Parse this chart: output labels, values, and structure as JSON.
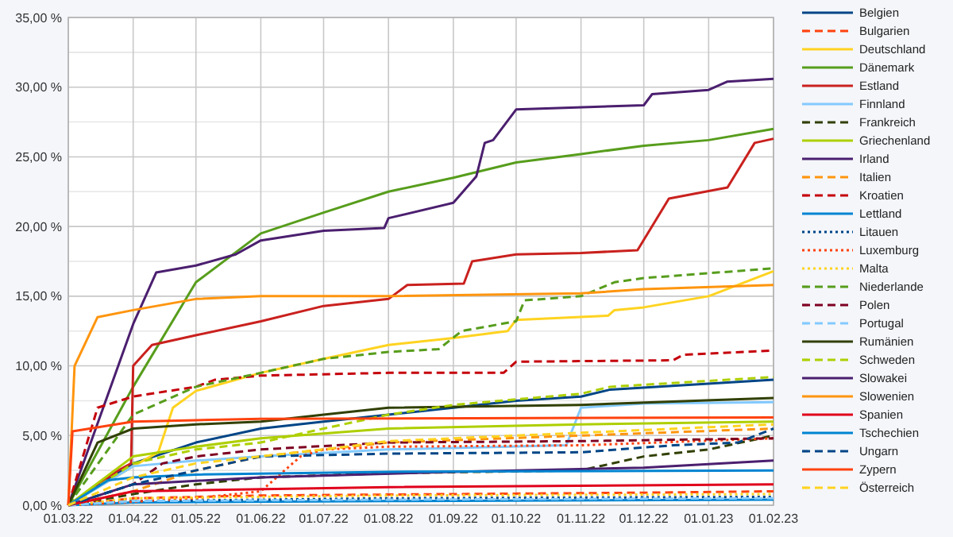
{
  "chart_data": {
    "type": "line",
    "legend": "right",
    "grid": true,
    "xlim": [
      "2022-03-01",
      "2023-02-01"
    ],
    "xticks": [
      {
        "value": "2022-03-01",
        "label": "01.03.22"
      },
      {
        "value": "2022-04-01",
        "label": "01.04.22"
      },
      {
        "value": "2022-05-01",
        "label": "01.05.22"
      },
      {
        "value": "2022-06-01",
        "label": "01.06.22"
      },
      {
        "value": "2022-07-01",
        "label": "01.07.22"
      },
      {
        "value": "2022-08-01",
        "label": "01.08.22"
      },
      {
        "value": "2022-09-01",
        "label": "01.09.22"
      },
      {
        "value": "2022-10-01",
        "label": "01.10.22"
      },
      {
        "value": "2022-11-01",
        "label": "01.11.22"
      },
      {
        "value": "2022-12-01",
        "label": "01.12.22"
      },
      {
        "value": "2023-01-01",
        "label": "01.01.23"
      },
      {
        "value": "2023-02-01",
        "label": "01.02.23"
      }
    ],
    "ylim": [
      0,
      35
    ],
    "yticks": [
      {
        "value": 0,
        "label": "0,00 %"
      },
      {
        "value": 2.5,
        "label": null
      },
      {
        "value": 5,
        "label": "5,00 %"
      },
      {
        "value": 7.5,
        "label": null
      },
      {
        "value": 10,
        "label": "10,00 %"
      },
      {
        "value": 12.5,
        "label": null
      },
      {
        "value": 15,
        "label": "15,00 %"
      },
      {
        "value": 17.5,
        "label": null
      },
      {
        "value": 20,
        "label": "20,00 %"
      },
      {
        "value": 22.5,
        "label": null
      },
      {
        "value": 25,
        "label": "25,00 %"
      },
      {
        "value": 27.5,
        "label": null
      },
      {
        "value": 30,
        "label": "30,00 %"
      },
      {
        "value": 32.5,
        "label": null
      },
      {
        "value": 35,
        "label": "35,00 %"
      }
    ],
    "series": [
      {
        "name": "Belgien",
        "color": "#004586",
        "line_style": "solid",
        "x": [
          "2022-03-01",
          "2022-04-01",
          "2022-05-01",
          "2022-06-01",
          "2022-07-01",
          "2022-08-01",
          "2022-09-01",
          "2022-10-01",
          "2022-11-01",
          "2022-11-15",
          "2023-02-01"
        ],
        "values": [
          0,
          3,
          4.5,
          5.5,
          6,
          6.5,
          7,
          7.5,
          7.8,
          8.3,
          9
        ]
      },
      {
        "name": "Bulgarien",
        "color": "#ff420e",
        "line_style": "dashed",
        "x": [
          "2022-03-01",
          "2022-04-01",
          "2022-06-01",
          "2022-09-01",
          "2022-12-01",
          "2023-02-01"
        ],
        "values": [
          0,
          0.5,
          0.7,
          0.8,
          0.9,
          1
        ]
      },
      {
        "name": "Deutschland",
        "color": "#ffd320",
        "line_style": "solid",
        "x": [
          "2022-03-01",
          "2022-04-01",
          "2022-04-13",
          "2022-04-20",
          "2022-05-01",
          "2022-06-01",
          "2022-07-01",
          "2022-08-01",
          "2022-09-01",
          "2022-09-27",
          "2022-10-01",
          "2022-11-14",
          "2022-11-17",
          "2022-12-01",
          "2023-01-01",
          "2023-02-01"
        ],
        "values": [
          0,
          2.8,
          3.8,
          7,
          8.2,
          9.5,
          10.5,
          11.5,
          12,
          12.5,
          13.3,
          13.6,
          14,
          14.2,
          15,
          16.8
        ]
      },
      {
        "name": "Dänemark",
        "color": "#579d1c",
        "line_style": "solid",
        "x": [
          "2022-03-01",
          "2022-04-01",
          "2022-05-01",
          "2022-06-01",
          "2022-07-01",
          "2022-08-01",
          "2022-09-01",
          "2022-10-01",
          "2022-11-01",
          "2022-12-01",
          "2023-01-01",
          "2023-02-01"
        ],
        "values": [
          0,
          8.5,
          16,
          19.5,
          21,
          22.5,
          23.5,
          24.6,
          25.2,
          25.8,
          26.2,
          27
        ]
      },
      {
        "name": "Estland",
        "color": "#c9211e",
        "line_style": "solid",
        "x": [
          "2022-03-01",
          "2022-03-25",
          "2022-03-31",
          "2022-04-01",
          "2022-04-10",
          "2022-05-01",
          "2022-06-01",
          "2022-07-01",
          "2022-08-01",
          "2022-08-10",
          "2022-09-06",
          "2022-09-10",
          "2022-10-01",
          "2022-11-01",
          "2022-11-28",
          "2022-12-13",
          "2023-01-10",
          "2023-01-23",
          "2023-02-01"
        ],
        "values": [
          0,
          2.5,
          3,
          10,
          11.5,
          12.2,
          13.2,
          14.3,
          14.8,
          15.8,
          15.9,
          17.5,
          18,
          18.1,
          18.3,
          22,
          22.8,
          26,
          26.3
        ]
      },
      {
        "name": "Finnland",
        "color": "#83caff",
        "line_style": "solid",
        "x": [
          "2022-03-01",
          "2022-04-01",
          "2022-05-01",
          "2022-06-01",
          "2022-08-01",
          "2022-10-25",
          "2022-11-01",
          "2022-12-01",
          "2023-02-01"
        ],
        "values": [
          0,
          2.8,
          3.2,
          3.5,
          4,
          4.3,
          7,
          7.3,
          7.4
        ]
      },
      {
        "name": "Frankreich",
        "color": "#314004",
        "line_style": "dashed",
        "x": [
          "2022-03-01",
          "2022-04-01",
          "2022-05-01",
          "2022-06-01",
          "2022-08-01",
          "2022-11-01",
          "2022-12-01",
          "2023-01-01",
          "2023-02-01"
        ],
        "values": [
          0,
          0.8,
          1.5,
          2,
          2.3,
          2.5,
          3.5,
          4,
          5
        ]
      },
      {
        "name": "Griechenland",
        "color": "#aecf00",
        "line_style": "solid",
        "x": [
          "2022-03-01",
          "2022-04-01",
          "2022-05-01",
          "2022-06-01",
          "2022-08-01",
          "2022-11-01",
          "2023-02-01"
        ],
        "values": [
          0,
          3.5,
          4.2,
          4.8,
          5.5,
          5.8,
          6
        ]
      },
      {
        "name": "Irland",
        "color": "#4b1f6f",
        "line_style": "solid",
        "x": [
          "2022-03-01",
          "2022-04-01",
          "2022-04-12",
          "2022-05-01",
          "2022-05-20",
          "2022-06-01",
          "2022-07-01",
          "2022-07-30",
          "2022-08-01",
          "2022-09-01",
          "2022-09-12",
          "2022-09-16",
          "2022-09-20",
          "2022-10-01",
          "2022-12-01",
          "2022-12-05",
          "2023-01-01",
          "2023-01-10",
          "2023-02-01"
        ],
        "values": [
          0,
          13,
          16.7,
          17.2,
          18,
          19,
          19.7,
          19.9,
          20.6,
          21.7,
          23.6,
          26,
          26.2,
          28.4,
          28.7,
          29.5,
          29.8,
          30.4,
          30.6
        ]
      },
      {
        "name": "Italien",
        "color": "#ff950e",
        "line_style": "dashed",
        "x": [
          "2022-03-01",
          "2022-04-01",
          "2022-05-01",
          "2022-06-01",
          "2022-07-01",
          "2022-08-01",
          "2022-11-01",
          "2023-02-01"
        ],
        "values": [
          0,
          1,
          2.5,
          3.5,
          4,
          4.5,
          5,
          5.5
        ]
      },
      {
        "name": "Kroatien",
        "color": "#c5000b",
        "line_style": "dashed",
        "x": [
          "2022-03-01",
          "2022-03-15",
          "2022-04-01",
          "2022-05-01",
          "2022-05-10",
          "2022-06-01",
          "2022-08-01",
          "2022-09-25",
          "2022-10-01",
          "2022-12-15",
          "2022-12-20",
          "2023-02-01"
        ],
        "values": [
          0,
          7,
          7.8,
          8.5,
          9,
          9.3,
          9.5,
          9.5,
          10.3,
          10.4,
          10.8,
          11.1
        ]
      },
      {
        "name": "Lettland",
        "color": "#0084d1",
        "line_style": "solid",
        "x": [
          "2022-03-01",
          "2022-04-01",
          "2022-08-01",
          "2023-02-01"
        ],
        "values": [
          0,
          0.2,
          0.3,
          0.4
        ]
      },
      {
        "name": "Litauen",
        "color": "#004586",
        "line_style": "dotted",
        "x": [
          "2022-03-01",
          "2022-04-01",
          "2022-08-01",
          "2023-02-01"
        ],
        "values": [
          0,
          0.3,
          0.5,
          0.6
        ]
      },
      {
        "name": "Luxemburg",
        "color": "#ff420e",
        "line_style": "dotted",
        "x": [
          "2022-03-01",
          "2022-05-01",
          "2022-06-01",
          "2022-06-20",
          "2022-07-01",
          "2022-08-01",
          "2022-11-01",
          "2023-02-01"
        ],
        "values": [
          0,
          0.5,
          1,
          3.5,
          4,
          4.2,
          4.3,
          4.8
        ]
      },
      {
        "name": "Malta",
        "color": "#ffd320",
        "line_style": "dotted",
        "x": [
          "2022-03-01",
          "2022-04-01",
          "2022-08-01",
          "2023-02-01"
        ],
        "values": [
          0,
          0.5,
          0.7,
          0.8
        ]
      },
      {
        "name": "Niederlande",
        "color": "#579d1c",
        "line_style": "dashed",
        "x": [
          "2022-03-01",
          "2022-04-01",
          "2022-05-01",
          "2022-06-01",
          "2022-07-01",
          "2022-08-01",
          "2022-08-25",
          "2022-09-05",
          "2022-10-01",
          "2022-10-05",
          "2022-11-01",
          "2022-11-17",
          "2022-12-01",
          "2023-02-01"
        ],
        "values": [
          0,
          6.5,
          8.5,
          9.5,
          10.5,
          11,
          11.2,
          12.5,
          13.2,
          14.7,
          15,
          16,
          16.3,
          17
        ]
      },
      {
        "name": "Polen",
        "color": "#7e0021",
        "line_style": "dashed",
        "x": [
          "2022-03-01",
          "2022-04-01",
          "2022-04-15",
          "2022-05-01",
          "2022-06-01",
          "2022-08-01",
          "2022-11-01",
          "2023-02-01"
        ],
        "values": [
          0,
          1.5,
          3,
          3.5,
          4,
          4.5,
          4.6,
          4.8
        ]
      },
      {
        "name": "Portugal",
        "color": "#83caff",
        "line_style": "dashed",
        "x": [
          "2022-03-01",
          "2022-04-01",
          "2022-08-01",
          "2023-02-01"
        ],
        "values": [
          0,
          0.3,
          0.4,
          0.5
        ]
      },
      {
        "name": "Rumänien",
        "color": "#314004",
        "line_style": "solid",
        "x": [
          "2022-03-01",
          "2022-03-15",
          "2022-04-01",
          "2022-05-01",
          "2022-06-01",
          "2022-07-01",
          "2022-08-01",
          "2022-11-01",
          "2023-02-01"
        ],
        "values": [
          0,
          4.5,
          5.5,
          5.8,
          6,
          6.5,
          7,
          7.2,
          7.7
        ]
      },
      {
        "name": "Schweden",
        "color": "#aecf00",
        "line_style": "dashed",
        "x": [
          "2022-03-01",
          "2022-04-01",
          "2022-05-01",
          "2022-06-01",
          "2022-07-01",
          "2022-08-01",
          "2022-09-01",
          "2022-11-01",
          "2022-11-15",
          "2023-02-01"
        ],
        "values": [
          0,
          3,
          4,
          4.5,
          5.5,
          6.5,
          7.2,
          8,
          8.5,
          9.2
        ]
      },
      {
        "name": "Slowakei",
        "color": "#4b1f6f",
        "line_style": "solid",
        "x": [
          "2022-03-01",
          "2022-04-01",
          "2022-06-01",
          "2022-09-01",
          "2022-12-01",
          "2023-02-01"
        ],
        "values": [
          0,
          1.5,
          2,
          2.4,
          2.7,
          3.2
        ]
      },
      {
        "name": "Slowenien",
        "color": "#ff950e",
        "line_style": "solid",
        "x": [
          "2022-03-01",
          "2022-03-04",
          "2022-03-15",
          "2022-04-01",
          "2022-05-01",
          "2022-06-01",
          "2022-08-01",
          "2022-11-01",
          "2022-12-01",
          "2023-02-01"
        ],
        "values": [
          0,
          10,
          13.5,
          14,
          14.8,
          15,
          15,
          15.2,
          15.5,
          15.8
        ]
      },
      {
        "name": "Spanien",
        "color": "#e0001b",
        "line_style": "solid",
        "x": [
          "2022-03-01",
          "2022-04-01",
          "2022-08-01",
          "2023-02-01"
        ],
        "values": [
          0,
          1,
          1.3,
          1.5
        ]
      },
      {
        "name": "Tschechien",
        "color": "#0084d1",
        "line_style": "solid",
        "x": [
          "2022-03-01",
          "2022-03-20",
          "2022-04-01",
          "2022-05-01",
          "2022-08-01",
          "2023-02-01"
        ],
        "values": [
          0,
          1.8,
          2,
          2.2,
          2.4,
          2.5
        ]
      },
      {
        "name": "Ungarn",
        "color": "#004586",
        "line_style": "dashed",
        "x": [
          "2022-03-01",
          "2022-04-01",
          "2022-05-01",
          "2022-06-01",
          "2022-08-01",
          "2022-11-01",
          "2022-12-15",
          "2023-01-15",
          "2023-02-01"
        ],
        "values": [
          0,
          1.5,
          2.5,
          3.5,
          3.7,
          3.8,
          4.3,
          4.5,
          5.5
        ]
      },
      {
        "name": "Zypern",
        "color": "#ff420e",
        "line_style": "solid",
        "x": [
          "2022-03-01",
          "2022-03-03",
          "2022-04-01",
          "2022-05-01",
          "2022-06-01",
          "2023-02-01"
        ],
        "values": [
          0,
          5.3,
          6,
          6.1,
          6.2,
          6.3
        ]
      },
      {
        "name": "Österreich",
        "color": "#ffd320",
        "line_style": "dashed",
        "x": [
          "2022-03-01",
          "2022-04-01",
          "2022-05-01",
          "2022-07-01",
          "2022-08-01",
          "2022-11-01",
          "2023-02-01"
        ],
        "values": [
          0,
          2,
          3,
          4,
          4.6,
          5.2,
          5.8
        ]
      }
    ]
  }
}
